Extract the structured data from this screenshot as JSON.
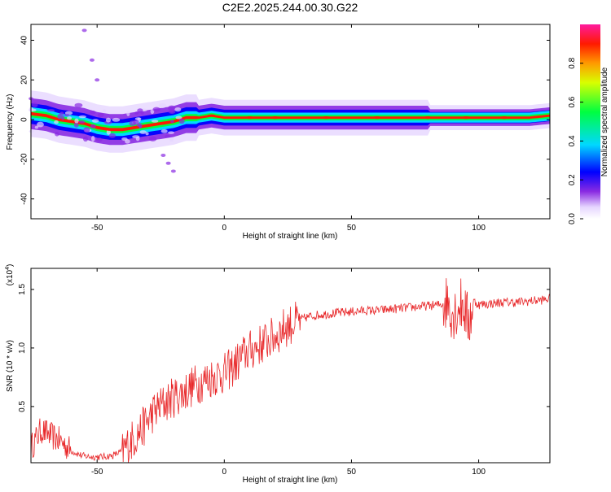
{
  "title": "C2E2.2025.244.00.30.G22",
  "chart_data": [
    {
      "type": "heatmap",
      "title": "C2E2.2025.244.00.30.G22",
      "xlabel": "Height of straight line (km)",
      "ylabel": "Frequency (Hz)",
      "xlim": [
        -76,
        128
      ],
      "ylim": [
        -50,
        48
      ],
      "xticks": [
        "-50",
        "0",
        "50",
        "100"
      ],
      "xtick_values": [
        -50,
        0,
        50,
        100
      ],
      "yticks": [
        "-40",
        "-20",
        "0",
        "20",
        "40"
      ],
      "ytick_values": [
        -40,
        -20,
        0,
        20,
        40
      ],
      "ridge": {
        "x": [
          -76,
          -70,
          -65,
          -60,
          -55,
          -50,
          -45,
          -40,
          -35,
          -30,
          -25,
          -20,
          -15,
          -10,
          -5,
          0,
          10,
          30,
          60,
          80,
          90,
          100,
          110,
          120,
          128
        ],
        "y": [
          3,
          2,
          0,
          -1,
          -2,
          -4,
          -5,
          -5,
          -4,
          -3,
          -2,
          -1,
          1,
          1,
          2,
          1,
          1,
          1,
          1,
          1,
          1,
          1,
          1,
          1,
          2
        ]
      },
      "scatter_arms": [
        {
          "x": [
            -24,
            -22,
            -20
          ],
          "y": [
            -18,
            -22,
            -26
          ]
        },
        {
          "x": [
            -55,
            -52,
            -50
          ],
          "y": [
            45,
            30,
            20
          ]
        }
      ],
      "colorbar": {
        "label": "Normalized spectral amplitude",
        "range": [
          0,
          1
        ],
        "ticks": [
          "0.0",
          "0.2",
          "0.4",
          "0.6",
          "0.8"
        ],
        "tick_values": [
          0,
          0.2,
          0.4,
          0.6,
          0.8
        ],
        "colors": [
          "#ffffff",
          "#e6d6ff",
          "#8a2be2",
          "#0000ff",
          "#00d8ff",
          "#00ff40",
          "#d8ff00",
          "#ff9a00",
          "#ff1a00",
          "#ff1a9e"
        ]
      }
    },
    {
      "type": "line",
      "xlabel": "Height of straight line (km)",
      "ylabel": "SNR (10 * v/v)",
      "ylabel_multiplier_base": "(x10",
      "ylabel_multiplier_exp": "4",
      "ylabel_multiplier_end": ")",
      "xlim": [
        -76,
        128
      ],
      "ylim": [
        0.02,
        1.68
      ],
      "xticks": [
        "-50",
        "0",
        "50",
        "100"
      ],
      "xtick_values": [
        -50,
        0,
        50,
        100
      ],
      "yticks": [
        "0.5",
        "1.0",
        "1.5"
      ],
      "ytick_values": [
        0.5,
        1.0,
        1.5
      ],
      "line_color": "#e8282a",
      "series": [
        {
          "name": "SNR",
          "x": [
            -76,
            -72,
            -68,
            -64,
            -60,
            -56,
            -52,
            -48,
            -44,
            -40,
            -36,
            -32,
            -28,
            -24,
            -20,
            -16,
            -12,
            -8,
            -4,
            0,
            4,
            8,
            12,
            16,
            20,
            24,
            28,
            32,
            36,
            40,
            45,
            50,
            55,
            60,
            65,
            70,
            75,
            80,
            85,
            88,
            90,
            92,
            94,
            96,
            98,
            100,
            105,
            110,
            115,
            120,
            125,
            128
          ],
          "y": [
            0.15,
            0.3,
            0.25,
            0.2,
            0.12,
            0.08,
            0.07,
            0.07,
            0.08,
            0.12,
            0.22,
            0.32,
            0.45,
            0.52,
            0.58,
            0.62,
            0.68,
            0.72,
            0.76,
            0.78,
            0.85,
            0.95,
            1.0,
            1.05,
            1.1,
            1.18,
            1.22,
            1.26,
            1.28,
            1.29,
            1.3,
            1.31,
            1.32,
            1.32,
            1.33,
            1.34,
            1.35,
            1.36,
            1.37,
            1.4,
            1.3,
            1.35,
            1.38,
            1.2,
            1.4,
            1.37,
            1.38,
            1.39,
            1.39,
            1.4,
            1.41,
            1.42
          ]
        }
      ]
    }
  ]
}
